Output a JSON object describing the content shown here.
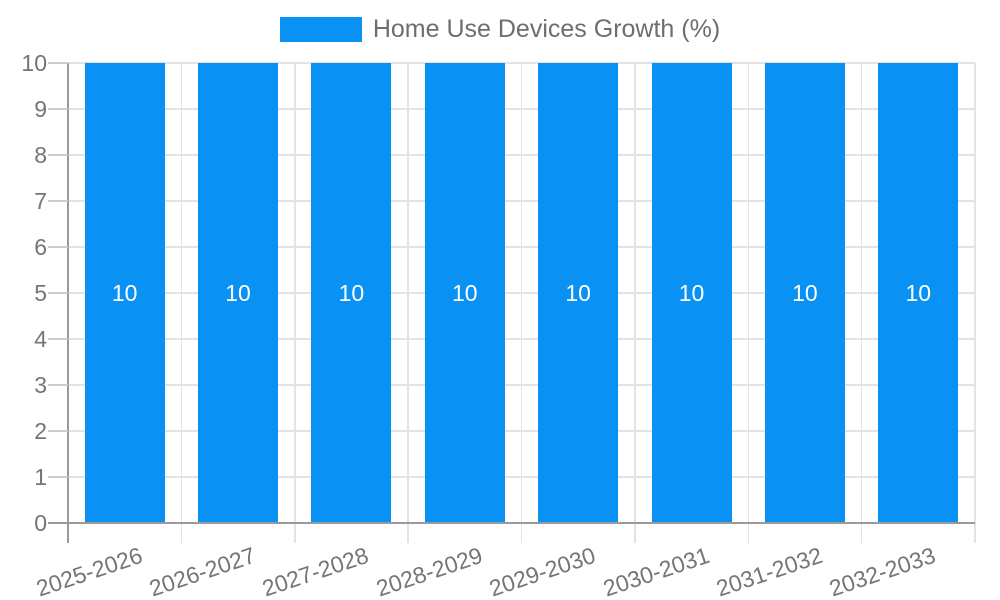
{
  "chart_data": {
    "type": "bar",
    "title": "Home Use Devices Growth (%)",
    "categories": [
      "2025-2026",
      "2026-2027",
      "2027-2028",
      "2028-2029",
      "2029-2030",
      "2030-2031",
      "2031-2032",
      "2032-2033"
    ],
    "series": [
      {
        "name": "Home Use Devices Growth (%)",
        "values": [
          10,
          10,
          10,
          10,
          10,
          10,
          10,
          10
        ]
      }
    ],
    "bar_labels": [
      "10",
      "10",
      "10",
      "10",
      "10",
      "10",
      "10",
      "10"
    ],
    "xlabel": "",
    "ylabel": "",
    "ylim": [
      0,
      10
    ],
    "yticks": [
      0,
      1,
      2,
      3,
      4,
      5,
      6,
      7,
      8,
      9,
      10
    ],
    "grid": true,
    "legend_position": "top",
    "x_label_rotation_deg": -18.5
  },
  "colors": {
    "bar": "#0991F4",
    "bar_label": "#FFFFFF",
    "legend_text": "#6E6E6E",
    "axis_text": "#757575",
    "gridline": "#E3E3E3",
    "category_line": "#E3E3E3",
    "axis_line": "#9A9A9A",
    "tick": "#CCCCCC",
    "background": "#FFFFFF"
  }
}
